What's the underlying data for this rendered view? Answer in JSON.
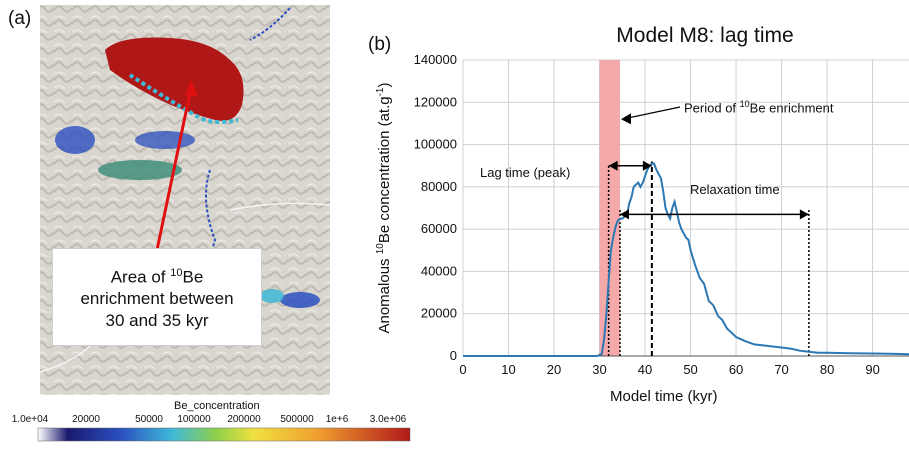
{
  "map_panel": {
    "label": "(a)",
    "callout": {
      "line1_pre": "Area of ",
      "sup": "10",
      "line1_post": "Be",
      "line2": "enrichment between",
      "line3": "30 and 35 kyr"
    },
    "colorbar": {
      "title": "Be_concentration",
      "ticks": [
        "1.0e+04",
        "20000",
        "50000",
        "100000",
        "200000",
        "500000",
        "1e+6",
        "3.0e+06"
      ],
      "colors": [
        "#ffffff",
        "#1a1a6e",
        "#2a4fbf",
        "#3fb8d8",
        "#f0e040",
        "#8fd04a",
        "#f0a030",
        "#b01818"
      ]
    }
  },
  "chart_panel": {
    "label": "(b)",
    "annotations": {
      "period_pre": "Period of ",
      "period_sup": "10",
      "period_post": "Be enrichment",
      "lag": "Lag time (peak)",
      "relax": "Relaxation time"
    }
  },
  "chart_data": {
    "type": "line",
    "title": "Model M8: lag time",
    "xlabel": "Model time (kyr)",
    "ylabel_pre": "Anomalous ",
    "ylabel_sup1": "10",
    "ylabel_mid": "Be concentration (at.g",
    "ylabel_sup2": "-1",
    "ylabel_post": ")",
    "xlim": [
      0,
      98
    ],
    "ylim": [
      0,
      140000
    ],
    "xticks": [
      0,
      10,
      20,
      30,
      40,
      50,
      60,
      70,
      80,
      90
    ],
    "yticks": [
      0,
      20000,
      40000,
      60000,
      80000,
      100000,
      120000,
      140000
    ],
    "grid": true,
    "line_color": "#2b78b4",
    "enrichment_band": {
      "x": [
        30,
        34.5
      ],
      "color": "#f4a0a0"
    },
    "markers": {
      "start_dotted": 32,
      "start_dotted_2": 34.5,
      "peak_dashed": 41.5,
      "end_dotted": 76
    },
    "series": [
      {
        "x": [
          0,
          29.5,
          30.5,
          31,
          31.5,
          32,
          32.5,
          33,
          33.5,
          34,
          34.5,
          35,
          35.5,
          36,
          36.5,
          37,
          37.5,
          38,
          38.5,
          39,
          39.5,
          40,
          40.5,
          41,
          41.5,
          42,
          42.5,
          43,
          43.5,
          44,
          44.5,
          45,
          45.5,
          46,
          46.5,
          47,
          47.5,
          48,
          48.5,
          49,
          49.5,
          50,
          51,
          52,
          53,
          54,
          55,
          56,
          57,
          58,
          59,
          60,
          62,
          64,
          66,
          68,
          70,
          72,
          74,
          76,
          78,
          80,
          85,
          90,
          95,
          98
        ],
        "y": [
          0,
          0,
          1000,
          8000,
          20000,
          35000,
          50000,
          56000,
          61000,
          64000,
          65000,
          65000,
          66000,
          66000,
          72000,
          75000,
          80000,
          81000,
          82000,
          80000,
          82000,
          85000,
          88000,
          90000,
          91000,
          91000,
          88000,
          86000,
          84000,
          78000,
          70000,
          67000,
          65000,
          70000,
          73000,
          68000,
          63000,
          60000,
          58000,
          56000,
          55000,
          50000,
          43000,
          37000,
          34000,
          26000,
          24000,
          19000,
          17000,
          13000,
          11000,
          9000,
          7000,
          5500,
          5000,
          4500,
          4000,
          3500,
          2500,
          2000,
          1500,
          1500,
          1300,
          1200,
          1000,
          800
        ]
      }
    ]
  }
}
